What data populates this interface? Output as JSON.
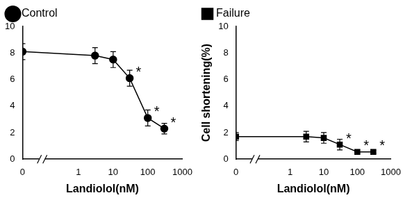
{
  "chart_data": [
    {
      "type": "line",
      "x_label": "Landiolol(nM)",
      "log": "x",
      "grid": false,
      "legend": "upper left",
      "xlim": [
        0,
        1000
      ],
      "xticks": [
        0,
        1,
        10,
        100,
        1000
      ],
      "ylim": [
        0,
        10
      ],
      "yticks": [
        0,
        2,
        4,
        6,
        8,
        10
      ],
      "x": [
        0,
        3,
        10,
        30,
        100,
        300
      ],
      "series": [
        {
          "name": "Control",
          "color": "#000000",
          "marker": "circle",
          "values": [
            8.1,
            7.8,
            7.5,
            6.1,
            3.1,
            2.3
          ],
          "errors": [
            0.6,
            0.6,
            0.6,
            0.6,
            0.6,
            0.4
          ]
        }
      ],
      "annotations": [
        {
          "text": "*",
          "x": 30,
          "y": 6.1
        },
        {
          "text": "*",
          "x": 100,
          "y": 3.1
        },
        {
          "text": "*",
          "x": 300,
          "y": 2.3
        }
      ]
    },
    {
      "type": "line",
      "x_label": "Landiolol(nM)",
      "y_label": "Cell shortening(%)",
      "log": "x",
      "grid": false,
      "legend": "upper left",
      "xlim": [
        0,
        1000
      ],
      "xticks": [
        0,
        1,
        10,
        100,
        1000
      ],
      "ylim": [
        0,
        10
      ],
      "yticks": [
        0,
        2,
        4,
        6,
        8,
        10
      ],
      "x": [
        0,
        3,
        10,
        30,
        100,
        300
      ],
      "series": [
        {
          "name": "Failure",
          "color": "#000000",
          "marker": "square",
          "values": [
            1.7,
            1.7,
            1.6,
            1.1,
            0.55,
            0.55
          ],
          "errors": [
            0.3,
            0.4,
            0.4,
            0.4,
            0.1,
            0.1
          ]
        }
      ],
      "annotations": [
        {
          "text": "*",
          "x": 30,
          "y": 1.1
        },
        {
          "text": "*",
          "x": 100,
          "y": 0.55
        },
        {
          "text": "*",
          "x": 300,
          "y": 0.55
        }
      ]
    }
  ]
}
